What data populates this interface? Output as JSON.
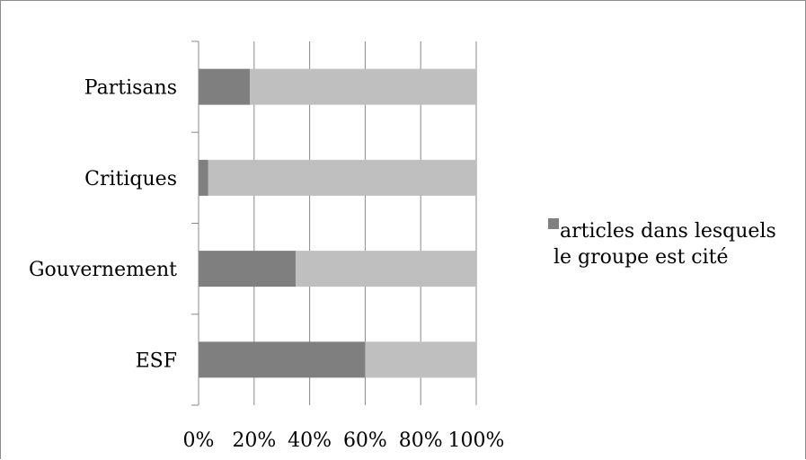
{
  "chart_data": {
    "type": "bar",
    "orientation": "horizontal",
    "stacked": true,
    "percent_stacked": true,
    "categories": [
      "Partisans",
      "Critiques",
      "Gouvernement",
      "ESF"
    ],
    "series": [
      {
        "name": "articles dans lesquels le groupe est cité",
        "values": [
          18.5,
          3.5,
          35,
          60
        ],
        "color": "#7f7f7f"
      },
      {
        "values": [
          81.5,
          96.5,
          65,
          40
        ],
        "color": "#bfbfbf"
      }
    ],
    "x_ticks": [
      "0%",
      "20%",
      "40%",
      "60%",
      "80%",
      "100%"
    ],
    "xlim": [
      0,
      100
    ],
    "grid": true,
    "legend_position": "right",
    "legend": {
      "lines": [
        "articles dans lesquels",
        "le groupe est cité"
      ]
    }
  }
}
